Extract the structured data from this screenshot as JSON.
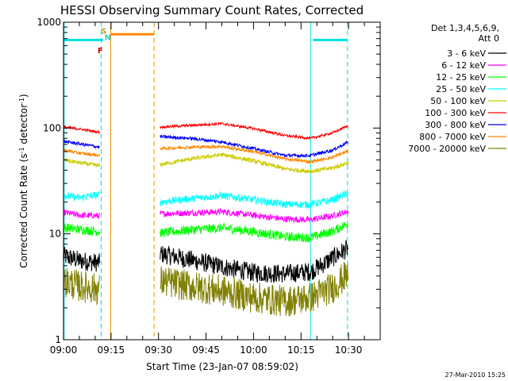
{
  "chart_data": {
    "type": "line",
    "title": "HESSI Observing Summary Count Rates, Corrected",
    "xlabel": "Start Time (23-Jan-07 08:59:02)",
    "ylabel": "Corrected Count Rate (s⁻¹ detector⁻¹)",
    "ylabel_parts": [
      "Corrected Count Rate (s",
      "-1",
      " detector",
      "-1",
      ")"
    ],
    "xlim_minutes": [
      0,
      100
    ],
    "ylim": [
      1,
      1000
    ],
    "yscale": "log",
    "x_tick_labels": [
      "09:00",
      "09:15",
      "09:30",
      "09:45",
      "10:00",
      "10:15",
      "10:30"
    ],
    "x_tick_minutes": [
      0,
      15,
      30,
      45,
      60,
      75,
      90
    ],
    "y_tick_values": [
      1,
      10,
      100,
      1000
    ],
    "y_tick_labels": [
      "1",
      "10",
      "100",
      "1000"
    ],
    "legend_header": [
      "Det 1,3,4,5,6,9,",
      "Att 0"
    ],
    "legend_position": "right",
    "footer": "27-Mar-2010 15:25",
    "annotations": [
      {
        "text": "S",
        "color": "#b5a01e",
        "minute": 12.7,
        "y": 780
      },
      {
        "text": "N",
        "color": "#33cccc",
        "minute": 14.0,
        "y": 680
      },
      {
        "text": "F",
        "color": "#cc0000",
        "minute": 11.6,
        "y": 510
      }
    ],
    "vlines": [
      {
        "minute": 0.2,
        "color": "#00e0e0",
        "style": "solid"
      },
      {
        "minute": 11.9,
        "color": "#00e0e0",
        "style": "dashed"
      },
      {
        "minute": 14.9,
        "color": "#e89000",
        "style": "solid"
      },
      {
        "minute": 28.6,
        "color": "#e89000",
        "style": "dashed"
      },
      {
        "minute": 78.0,
        "color": "#00e0e0",
        "style": "solid"
      },
      {
        "minute": 89.7,
        "color": "#00e0e0",
        "style": "dashed"
      }
    ],
    "status_bars": [
      {
        "name": "night",
        "color": "#00e0e0",
        "y": 680,
        "ranges": [
          [
            0,
            12.5
          ],
          [
            78.8,
            89.5
          ]
        ]
      },
      {
        "name": "saa",
        "color": "#ff8800",
        "y": 770,
        "ranges": [
          [
            14.8,
            28.5
          ]
        ]
      }
    ],
    "gap_minutes": [
      12.2,
      30.1
    ],
    "series": [
      {
        "name": "3 - 6 keV",
        "color": "#000000",
        "pre": [
          [
            0,
            6.2
          ],
          [
            5,
            5.6
          ],
          [
            11.5,
            5.3
          ]
        ],
        "post": [
          [
            30.5,
            6.5
          ],
          [
            40,
            5.7
          ],
          [
            50,
            4.9
          ],
          [
            60,
            4.3
          ],
          [
            70,
            4.2
          ],
          [
            78,
            4.4
          ],
          [
            82,
            5.2
          ],
          [
            90,
            7.4
          ]
        ],
        "noise": 0.09
      },
      {
        "name": "6 - 12 keV",
        "color": "#ff00ff",
        "pre": [
          [
            0,
            16
          ],
          [
            5,
            15
          ],
          [
            11.5,
            14.8
          ]
        ],
        "post": [
          [
            30.5,
            15.5
          ],
          [
            40,
            15.8
          ],
          [
            50,
            16.2
          ],
          [
            60,
            15.0
          ],
          [
            70,
            13.8
          ],
          [
            78,
            13.6
          ],
          [
            85,
            14.8
          ],
          [
            90,
            16.4
          ]
        ],
        "noise": 0.03
      },
      {
        "name": "12 - 25 keV",
        "color": "#00ff00",
        "pre": [
          [
            0,
            11.5
          ],
          [
            5,
            11
          ],
          [
            11.5,
            10.5
          ]
        ],
        "post": [
          [
            30.5,
            10.2
          ],
          [
            40,
            10.9
          ],
          [
            50,
            11.4
          ],
          [
            60,
            10.5
          ],
          [
            70,
            9.4
          ],
          [
            78,
            9.2
          ],
          [
            85,
            10.6
          ],
          [
            90,
            12.6
          ]
        ],
        "noise": 0.045
      },
      {
        "name": "25 - 50 keV",
        "color": "#00ffff",
        "pre": [
          [
            0,
            23
          ],
          [
            5,
            22
          ],
          [
            11.5,
            23.5
          ]
        ],
        "post": [
          [
            30.5,
            20
          ],
          [
            40,
            21.5
          ],
          [
            50,
            23
          ],
          [
            60,
            21
          ],
          [
            70,
            19
          ],
          [
            78,
            19
          ],
          [
            85,
            21
          ],
          [
            90,
            24.5
          ]
        ],
        "noise": 0.035
      },
      {
        "name": "50 - 100 keV",
        "color": "#cccc00",
        "pre": [
          [
            0,
            50
          ],
          [
            5,
            47
          ],
          [
            11.5,
            44
          ]
        ],
        "post": [
          [
            30.5,
            45
          ],
          [
            40,
            51
          ],
          [
            50,
            56
          ],
          [
            60,
            49
          ],
          [
            70,
            41
          ],
          [
            78,
            39
          ],
          [
            85,
            42
          ],
          [
            90,
            47
          ]
        ],
        "noise": 0.02
      },
      {
        "name": "100 - 300 keV",
        "color": "#ff0000",
        "pre": [
          [
            0,
            102
          ],
          [
            5,
            98
          ],
          [
            11.5,
            91
          ]
        ],
        "post": [
          [
            30.5,
            102
          ],
          [
            40,
            106
          ],
          [
            50,
            110
          ],
          [
            60,
            99
          ],
          [
            70,
            85
          ],
          [
            78,
            80
          ],
          [
            85,
            90
          ],
          [
            90,
            106
          ]
        ],
        "noise": 0.012
      },
      {
        "name": "300 - 800 keV",
        "color": "#0000ff",
        "pre": [
          [
            0,
            75
          ],
          [
            5,
            71
          ],
          [
            11.5,
            66
          ]
        ],
        "post": [
          [
            30.5,
            83
          ],
          [
            40,
            80
          ],
          [
            50,
            74
          ],
          [
            60,
            64
          ],
          [
            70,
            55
          ],
          [
            78,
            55
          ],
          [
            85,
            62
          ],
          [
            90,
            74
          ]
        ],
        "noise": 0.015
      },
      {
        "name": "800 - 7000 keV",
        "color": "#ff8800",
        "pre": [
          [
            0,
            62
          ],
          [
            5,
            58
          ],
          [
            11.5,
            55
          ]
        ],
        "post": [
          [
            30.5,
            64
          ],
          [
            40,
            66
          ],
          [
            50,
            67
          ],
          [
            60,
            60
          ],
          [
            70,
            51
          ],
          [
            78,
            48
          ],
          [
            85,
            53
          ],
          [
            90,
            61
          ]
        ],
        "noise": 0.015
      },
      {
        "name": "7000 - 20000 keV",
        "color": "#808000",
        "pre": [
          [
            0,
            3.6
          ],
          [
            5,
            3.2
          ],
          [
            11.5,
            3.0
          ]
        ],
        "post": [
          [
            30.5,
            3.6
          ],
          [
            40,
            3.2
          ],
          [
            50,
            2.9
          ],
          [
            60,
            2.5
          ],
          [
            70,
            2.3
          ],
          [
            78,
            2.5
          ],
          [
            85,
            3.1
          ],
          [
            90,
            4.2
          ]
        ],
        "noise": 0.15
      }
    ]
  }
}
